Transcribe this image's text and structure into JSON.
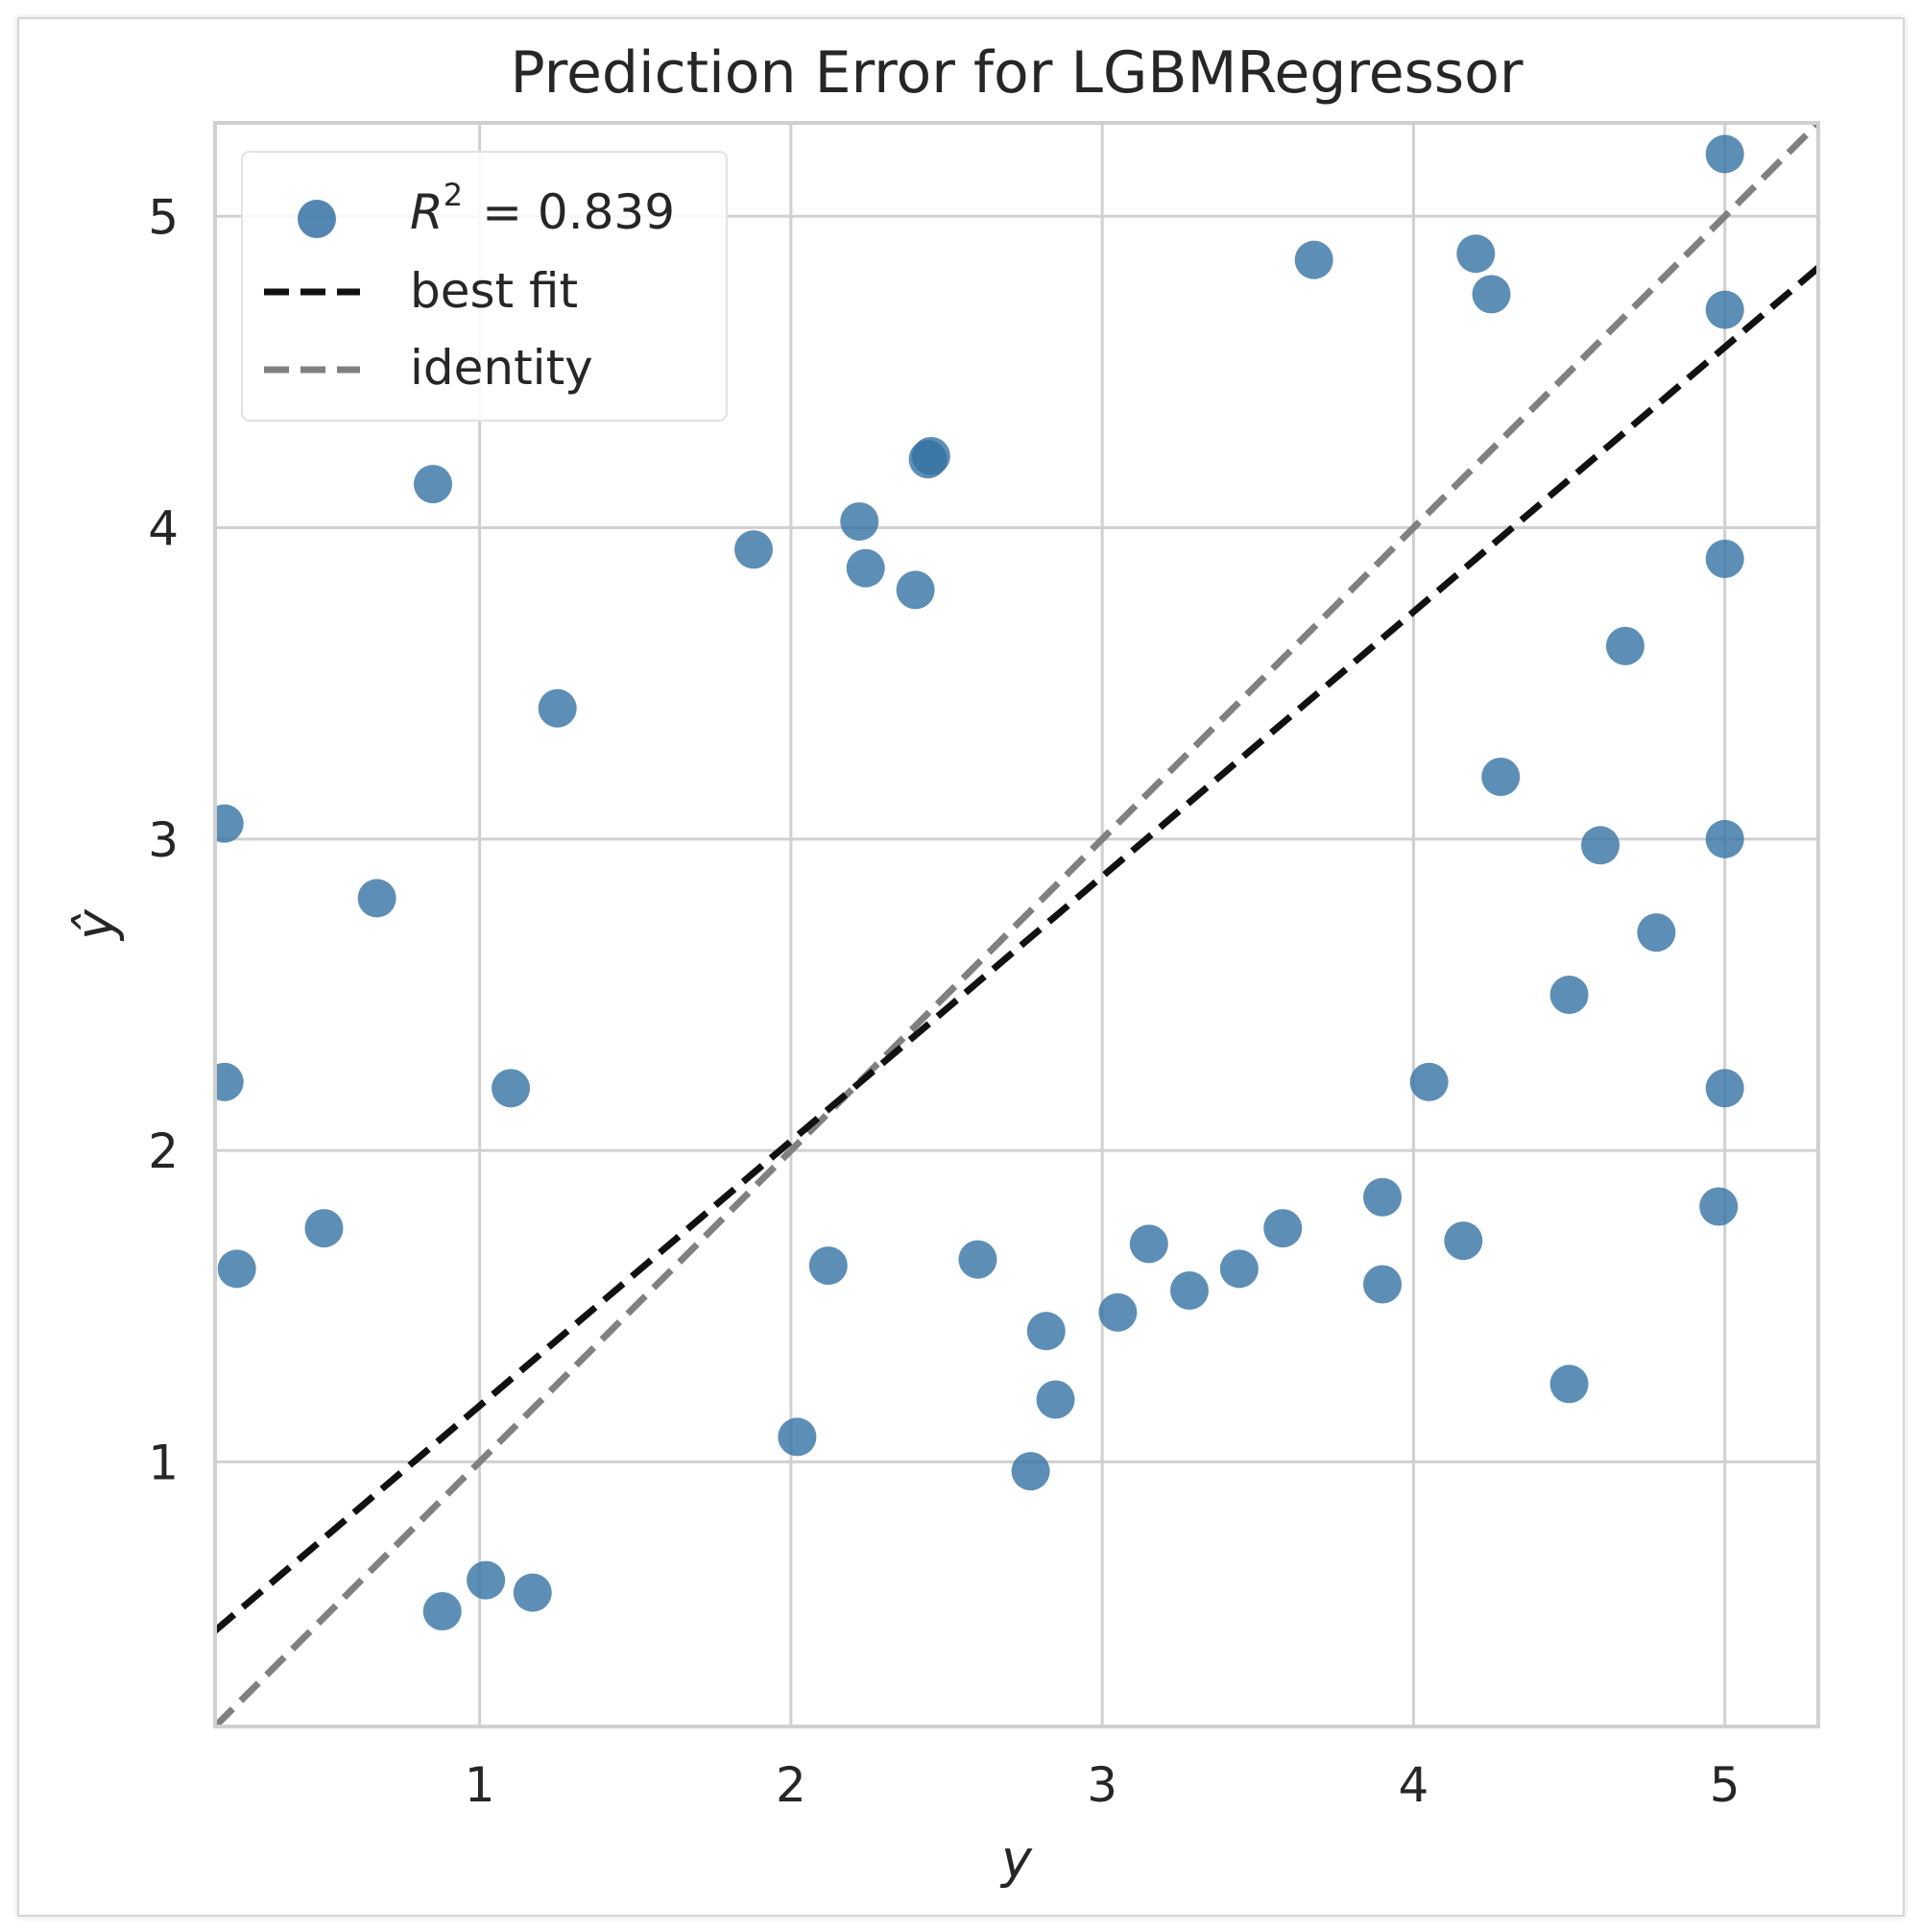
{
  "chart_data": {
    "type": "scatter",
    "title": "Prediction Error for LGBMRegressor",
    "xlabel": "y",
    "ylabel": "ŷ",
    "xlim": [
      0.15,
      5.3
    ],
    "ylim": [
      0.15,
      5.3
    ],
    "xticks": [
      1,
      2,
      3,
      4,
      5
    ],
    "yticks": [
      1,
      2,
      3,
      4,
      5
    ],
    "grid": true,
    "legend_position": "top-left",
    "colors": {
      "points": "#3572a3",
      "best_fit": "#111111",
      "identity": "#808080",
      "grid": "#d0d0d0",
      "frame": "#d0d0d0"
    },
    "series": [
      {
        "name": "R² = 0.839",
        "kind": "points",
        "description_points": "dense cloud along diagonal",
        "x": [
          0.85,
          1.88,
          1.25,
          0.67,
          0.18,
          0.18,
          0.22,
          0.5,
          2.22,
          2.24,
          2.4,
          2.45,
          2.44,
          3.9,
          4.5,
          4.5,
          4.16,
          3.58,
          5.0,
          5.0,
          5.0,
          5.0,
          5.0,
          4.98,
          3.68,
          4.2,
          4.25,
          2.77,
          2.85,
          0.88,
          1.02,
          1.17,
          1.1,
          3.05,
          3.15,
          3.28,
          3.44,
          3.9,
          4.05,
          4.6,
          4.78,
          4.68,
          4.28,
          2.6,
          2.82,
          2.12,
          2.02
        ],
        "y": [
          4.14,
          3.93,
          3.42,
          2.81,
          3.05,
          2.22,
          1.62,
          1.75,
          4.02,
          3.87,
          3.8,
          4.23,
          4.22,
          1.57,
          1.25,
          2.5,
          1.71,
          1.75,
          5.2,
          4.7,
          3.9,
          3.0,
          2.2,
          1.82,
          4.86,
          4.88,
          4.75,
          0.97,
          1.2,
          0.52,
          0.62,
          0.58,
          2.2,
          1.48,
          1.7,
          1.55,
          1.62,
          1.85,
          2.22,
          2.98,
          2.7,
          3.62,
          3.2,
          1.65,
          1.42,
          1.63,
          1.08
        ]
      },
      {
        "name": "best fit",
        "kind": "line",
        "slope": 0.85,
        "intercept": 0.33
      },
      {
        "name": "identity",
        "kind": "line",
        "slope": 1,
        "intercept": 0
      }
    ],
    "legend": {
      "r2_symbol": "R",
      "r2_power": "2",
      "r2_value": "= 0.839",
      "best_fit": "best fit",
      "identity": "identity"
    }
  }
}
